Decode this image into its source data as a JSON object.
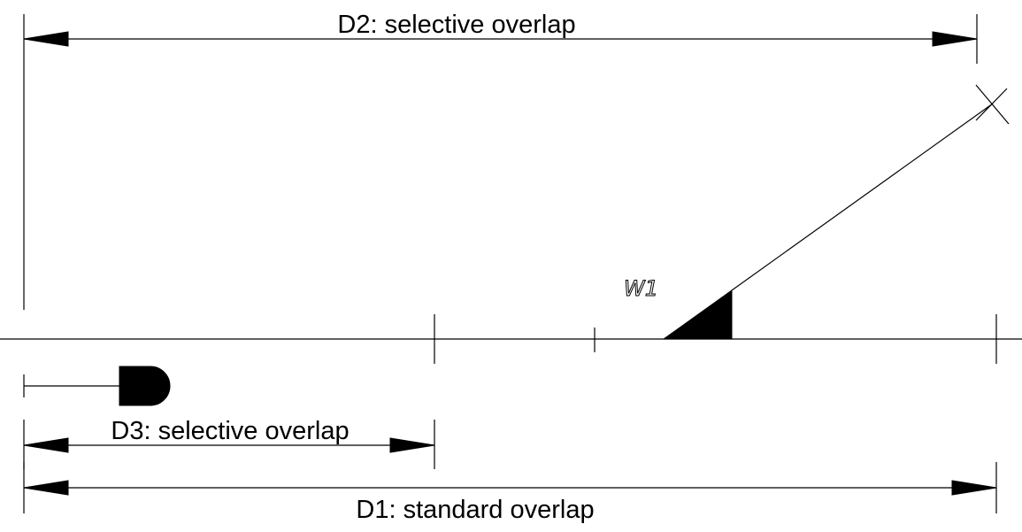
{
  "dimensions": {
    "d2": {
      "label": "D2: selective overlap"
    },
    "d3": {
      "label": "D3: selective overlap"
    },
    "d1": {
      "label": "D1: standard overlap"
    }
  },
  "switch": {
    "label": "W1"
  }
}
